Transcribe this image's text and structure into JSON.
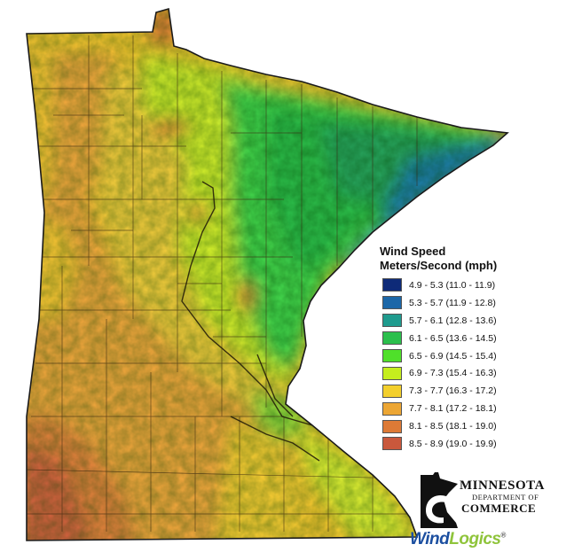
{
  "legend": {
    "title_line1": "Wind Speed",
    "title_line2": "Meters/Second (mph)",
    "classes": [
      {
        "label": "4.9 - 5.3 (11.0 - 11.9)",
        "color": "#0e2a78"
      },
      {
        "label": "5.3 - 5.7 (11.9 - 12.8)",
        "color": "#1c67a8"
      },
      {
        "label": "5.7 - 6.1 (12.8 - 13.6)",
        "color": "#1f9b8e"
      },
      {
        "label": "6.1 - 6.5 (13.6 - 14.5)",
        "color": "#2bbf4c"
      },
      {
        "label": "6.5 - 6.9 (14.5 - 15.4)",
        "color": "#4fe02a"
      },
      {
        "label": "6.9 - 7.3 (15.4 - 16.3)",
        "color": "#c5ee1e"
      },
      {
        "label": "7.3 - 7.7 (16.3 - 17.2)",
        "color": "#f3cf2c"
      },
      {
        "label": "7.7 - 8.1 (17.2 - 18.1)",
        "color": "#eca634"
      },
      {
        "label": "8.1 - 8.5 (18.1 - 19.0)",
        "color": "#dd7a36"
      },
      {
        "label": "8.5 - 8.9 (19.0 - 19.9)",
        "color": "#c9583c"
      }
    ]
  },
  "logo": {
    "line1": "MINNESOTA",
    "line2": "DEPARTMENT OF",
    "line3": "COMMERCE"
  },
  "sponsor": {
    "part1": "Wind",
    "part2": "Logics",
    "mark": "®"
  }
}
